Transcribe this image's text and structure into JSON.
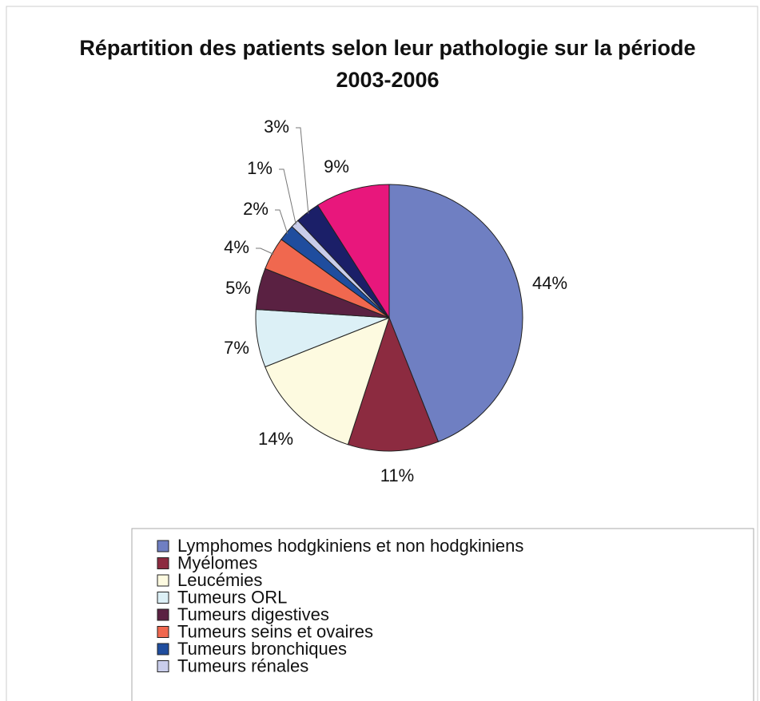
{
  "chart_data": {
    "type": "pie",
    "title": "Répartition des patients selon leur pathologie sur la période 2003-2006",
    "categories": [
      "Lymphomes hodgkiniens et non hodgkiniens",
      "Myélomes",
      "Leucémies",
      "Tumeurs ORL",
      "Tumeurs digestives",
      "Tumeurs seins et ovaires",
      "Tumeurs bronchiques",
      "Tumeurs rénales",
      null,
      null
    ],
    "values": [
      44,
      11,
      14,
      7,
      5,
      4,
      2,
      1,
      3,
      9
    ],
    "value_labels": [
      "44%",
      "11%",
      "14%",
      "7%",
      "5%",
      "4%",
      "2%",
      "1%",
      "3%",
      "9%"
    ],
    "colors": [
      "#6f7fc2",
      "#8c2b40",
      "#fdfae0",
      "#dcf0f6",
      "#5a2142",
      "#f0684f",
      "#1f4d9e",
      "#c9cdea",
      "#1b1f68",
      "#e8177c"
    ]
  }
}
